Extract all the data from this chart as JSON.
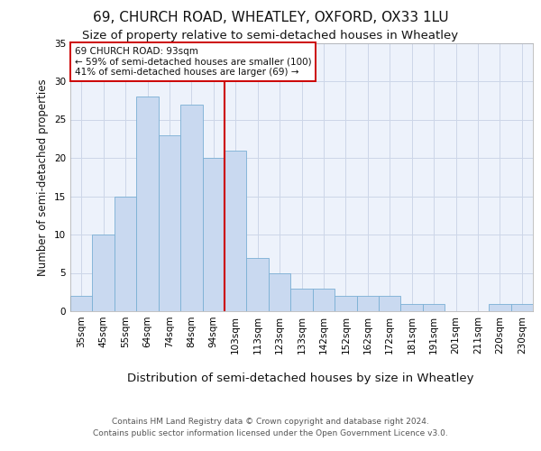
{
  "title_line1": "69, CHURCH ROAD, WHEATLEY, OXFORD, OX33 1LU",
  "title_line2": "Size of property relative to semi-detached houses in Wheatley",
  "xlabel": "Distribution of semi-detached houses by size in Wheatley",
  "ylabel": "Number of semi-detached properties",
  "categories": [
    "35sqm",
    "45sqm",
    "55sqm",
    "64sqm",
    "74sqm",
    "84sqm",
    "94sqm",
    "103sqm",
    "113sqm",
    "123sqm",
    "133sqm",
    "142sqm",
    "152sqm",
    "162sqm",
    "172sqm",
    "181sqm",
    "191sqm",
    "201sqm",
    "211sqm",
    "220sqm",
    "230sqm"
  ],
  "values": [
    2,
    10,
    15,
    28,
    23,
    27,
    20,
    21,
    7,
    5,
    3,
    3,
    2,
    2,
    2,
    1,
    1,
    0,
    0,
    1,
    1
  ],
  "bar_color": "#c9d9f0",
  "bar_edge_color": "#7aafd4",
  "grid_color": "#ccd6e8",
  "background_color": "#edf2fb",
  "annotation_text": "69 CHURCH ROAD: 93sqm\n← 59% of semi-detached houses are smaller (100)\n41% of semi-detached houses are larger (69) →",
  "annotation_box_color": "#ffffff",
  "annotation_box_edge": "#cc0000",
  "red_line_x": 6.5,
  "ylim": [
    0,
    35
  ],
  "yticks": [
    0,
    5,
    10,
    15,
    20,
    25,
    30,
    35
  ],
  "footer_line1": "Contains HM Land Registry data © Crown copyright and database right 2024.",
  "footer_line2": "Contains public sector information licensed under the Open Government Licence v3.0.",
  "title_fontsize": 11,
  "subtitle_fontsize": 9.5,
  "tick_fontsize": 7.5,
  "ylabel_fontsize": 8.5,
  "xlabel_fontsize": 9.5,
  "annotation_fontsize": 7.5,
  "footer_fontsize": 6.5
}
